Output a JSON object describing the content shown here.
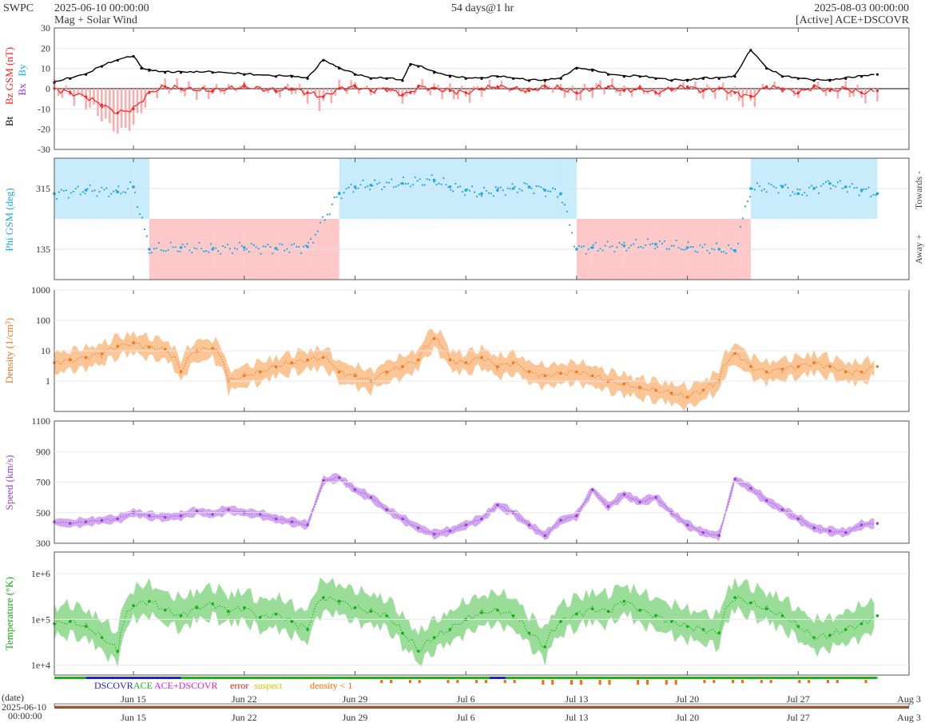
{
  "header": {
    "agency": "SWPC",
    "start": "2025-06-10 00:00:00",
    "end": "2025-08-03 00:00:00",
    "span": "54 days@1 hr",
    "subtitle": "Mag + Solar Wind",
    "source": "[Active] ACE+DSCOVR"
  },
  "axis": {
    "date_label": "(date)",
    "start_date": "2025-06-10",
    "start_time": "00:00:00",
    "x_ticks": [
      "Jun 15",
      "Jun 22",
      "Jun 29",
      "Jul 6",
      "Jul 13",
      "Jul 20",
      "Jul 27",
      "Aug 3"
    ],
    "x_tick_days": [
      5,
      12,
      19,
      26,
      33,
      40,
      47,
      54
    ],
    "x_range_days": [
      0,
      54
    ]
  },
  "legend": {
    "dscovr": "DSCOVR",
    "ace": "ACE",
    "ace_dscovr": "ACE+DSCOVR",
    "error": "error",
    "suspect": "suspect",
    "density": "density < 1"
  },
  "colors": {
    "bt": "#000000",
    "bz": "#ff2020",
    "bz_fill": "#ffaaaa",
    "by": "#20aaee",
    "bx": "#8a2be2",
    "phi": "#20a8e8",
    "phi_towards": "#c8ecfc",
    "phi_away": "#ffc8c8",
    "density": "#f07820",
    "density_fill": "#fbc596",
    "speed": "#a040d0",
    "speed_fill": "#d2a8f2",
    "temp": "#10b010",
    "temp_fill": "#99dd99",
    "dscovr": "#2020d0",
    "ace": "#20b020",
    "ace_dscovr": "#e020e0",
    "error": "#e02020",
    "suspect": "#e0c000",
    "density_flag": "#ff6a00"
  },
  "chart_data": [
    {
      "type": "line",
      "panel": "mag",
      "ylabel_parts": [
        "Bt",
        "Bz GSM (nT)",
        "Bx",
        "By"
      ],
      "ylim": [
        -30,
        30
      ],
      "yticks": [
        30,
        20,
        10,
        0,
        -10,
        -20,
        -30
      ],
      "series": [
        {
          "name": "Bt",
          "x": [
            0,
            1,
            2,
            3,
            4,
            5,
            5.5,
            6,
            7,
            8,
            10,
            12,
            14,
            15,
            16,
            17,
            18,
            19,
            20,
            21,
            22,
            22.5,
            23,
            24,
            25,
            26,
            27,
            28,
            29,
            30,
            31,
            32,
            33,
            34,
            35,
            36,
            37,
            38,
            39,
            40,
            41,
            42,
            43,
            44,
            45,
            46,
            47,
            48,
            49,
            50,
            51,
            52
          ],
          "y": [
            3,
            5,
            7,
            11,
            14,
            16,
            10,
            9,
            8,
            8,
            8,
            7,
            6,
            6,
            5,
            14,
            10,
            7,
            5,
            5,
            4,
            12,
            11,
            8,
            6,
            5,
            5,
            6,
            5,
            4,
            4,
            5,
            10,
            9,
            7,
            6,
            6,
            5,
            4,
            4,
            5,
            5,
            6,
            19,
            10,
            6,
            5,
            4,
            4,
            5,
            6,
            7
          ]
        },
        {
          "name": "Bz GSM",
          "x": [
            0,
            1,
            2,
            3,
            4,
            5,
            6,
            7,
            8,
            10,
            12,
            14,
            15,
            16,
            17,
            18,
            19,
            20,
            21,
            22,
            22.5,
            23,
            24,
            25,
            26,
            27,
            28,
            29,
            30,
            31,
            32,
            33,
            34,
            35,
            36,
            37,
            38,
            39,
            40,
            41,
            42,
            43,
            44,
            45,
            46,
            47,
            48,
            49,
            50,
            51,
            52
          ],
          "y": [
            0,
            -2,
            -4,
            -8,
            -12,
            -10,
            -2,
            1,
            0,
            -1,
            1,
            -1,
            0,
            -2,
            -4,
            0,
            1,
            -1,
            0,
            -3,
            -2,
            1,
            0,
            -1,
            -2,
            0,
            1,
            0,
            -1,
            1,
            0,
            -2,
            0,
            1,
            -1,
            0,
            -2,
            0,
            1,
            -1,
            0,
            -2,
            -4,
            1,
            0,
            -2,
            1,
            -1,
            0,
            -2,
            -1
          ]
        }
      ]
    },
    {
      "type": "scatter",
      "panel": "phi",
      "ylabel": "Phi GSM (deg)",
      "ylim": [
        45,
        405
      ],
      "yticks": [
        315,
        135
      ],
      "right_labels": [
        "Towards -",
        "Away +"
      ],
      "series": [
        {
          "name": "Phi GSM",
          "x": [
            0,
            2,
            4,
            5,
            6,
            8,
            10,
            12,
            14,
            16,
            18,
            19,
            20,
            22,
            24,
            25,
            26,
            27,
            28,
            29,
            30,
            31,
            32,
            33,
            34,
            36,
            38,
            40,
            42,
            43,
            44,
            46,
            47,
            48,
            49,
            50,
            51,
            52
          ],
          "y": [
            300,
            310,
            305,
            320,
            135,
            140,
            135,
            140,
            138,
            142,
            300,
            320,
            325,
            330,
            340,
            320,
            310,
            300,
            310,
            315,
            320,
            310,
            300,
            135,
            140,
            145,
            150,
            140,
            135,
            130,
            315,
            320,
            300,
            315,
            330,
            320,
            310,
            300
          ]
        }
      ]
    },
    {
      "type": "line",
      "panel": "density",
      "ylabel": "Density (1/cm³)",
      "yscale": "log",
      "ylim": [
        0.1,
        1000
      ],
      "yticks": [
        1000,
        100,
        10,
        1
      ],
      "series": [
        {
          "name": "Density",
          "x": [
            0,
            1,
            2,
            3,
            4,
            5,
            6,
            7,
            8,
            9,
            10,
            11,
            12,
            13,
            14,
            15,
            16,
            17,
            18,
            19,
            20,
            21,
            22,
            23,
            24,
            25,
            26,
            27,
            28,
            29,
            30,
            31,
            32,
            33,
            34,
            35,
            36,
            37,
            38,
            39,
            40,
            41,
            42,
            43,
            44,
            45,
            46,
            47,
            48,
            49,
            50,
            51,
            52
          ],
          "y": [
            4,
            5,
            6,
            8,
            14,
            18,
            13,
            11,
            2,
            10,
            12,
            1,
            1.5,
            2,
            3,
            4,
            5,
            6,
            2,
            1.5,
            1,
            2,
            3,
            5,
            25,
            5,
            4,
            6,
            3,
            4,
            2,
            1.5,
            1.8,
            2,
            1.5,
            1,
            0.8,
            0.6,
            0.5,
            0.4,
            0.3,
            0.5,
            1,
            8,
            3,
            2,
            2.5,
            3,
            4,
            3,
            2,
            2,
            3
          ]
        }
      ]
    },
    {
      "type": "line",
      "panel": "speed",
      "ylabel": "Speed (km/s)",
      "ylim": [
        300,
        1100
      ],
      "yticks": [
        1100,
        900,
        700,
        500,
        300
      ],
      "series": [
        {
          "name": "Speed",
          "x": [
            0,
            1,
            2,
            3,
            4,
            5,
            6,
            7,
            8,
            9,
            10,
            11,
            12,
            13,
            14,
            15,
            16,
            17,
            18,
            19,
            20,
            21,
            22,
            23,
            24,
            25,
            26,
            27,
            28,
            29,
            30,
            31,
            32,
            33,
            34,
            35,
            36,
            37,
            38,
            39,
            40,
            41,
            42,
            43,
            44,
            45,
            46,
            47,
            48,
            49,
            50,
            51,
            52
          ],
          "y": [
            440,
            430,
            440,
            450,
            460,
            500,
            480,
            470,
            480,
            510,
            490,
            520,
            500,
            490,
            460,
            440,
            420,
            710,
            730,
            650,
            600,
            520,
            460,
            400,
            360,
            380,
            420,
            460,
            550,
            500,
            420,
            350,
            450,
            480,
            650,
            540,
            620,
            570,
            600,
            500,
            420,
            370,
            350,
            720,
            660,
            580,
            520,
            460,
            400,
            380,
            370,
            420,
            430
          ]
        }
      ]
    },
    {
      "type": "line",
      "panel": "temperature",
      "ylabel": "Temperature (°K)",
      "yscale": "log",
      "ylim": [
        6000,
        3000000
      ],
      "yticks": [
        "1e+6",
        "1e+5",
        "1e+4"
      ],
      "series": [
        {
          "name": "Temperature",
          "x": [
            0,
            1,
            2,
            3,
            4,
            5,
            6,
            7,
            8,
            9,
            10,
            11,
            12,
            13,
            14,
            15,
            16,
            17,
            18,
            19,
            20,
            21,
            22,
            23,
            24,
            25,
            26,
            27,
            28,
            29,
            30,
            31,
            32,
            33,
            34,
            35,
            36,
            37,
            38,
            39,
            40,
            41,
            42,
            43,
            44,
            45,
            46,
            47,
            48,
            49,
            50,
            51,
            52
          ],
          "y": [
            80000,
            90000,
            70000,
            40000,
            20000,
            200000,
            250000,
            160000,
            120000,
            180000,
            220000,
            150000,
            180000,
            110000,
            130000,
            90000,
            60000,
            300000,
            250000,
            180000,
            150000,
            120000,
            50000,
            20000,
            40000,
            60000,
            100000,
            140000,
            160000,
            120000,
            50000,
            25000,
            90000,
            130000,
            170000,
            150000,
            250000,
            160000,
            120000,
            90000,
            70000,
            60000,
            50000,
            300000,
            230000,
            170000,
            120000,
            70000,
            40000,
            45000,
            60000,
            80000,
            120000
          ]
        }
      ]
    }
  ]
}
